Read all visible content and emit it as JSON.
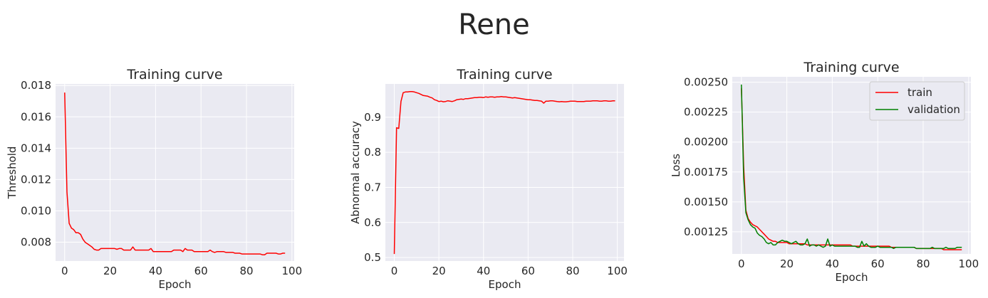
{
  "suptitle": "Rene",
  "chart_data": [
    {
      "type": "line",
      "title": "Training curve",
      "xlabel": "Epoch",
      "ylabel": "Threshold",
      "xlim": [
        -4,
        101
      ],
      "ylim": [
        0.0068,
        0.0181
      ],
      "xticks": [
        0,
        20,
        40,
        60,
        80,
        100
      ],
      "yticks": [
        0.008,
        0.01,
        0.012,
        0.014,
        0.016,
        0.018
      ],
      "ytick_labels": [
        "0.008",
        "0.010",
        "0.012",
        "0.014",
        "0.016",
        "0.018"
      ],
      "grid": true,
      "legend": null,
      "series": [
        {
          "color": "#ff0000",
          "x": [
            0,
            1,
            2,
            3,
            4,
            5,
            6,
            7,
            8,
            9,
            10,
            11,
            12,
            13,
            14,
            15,
            16,
            17,
            18,
            19,
            20,
            21,
            22,
            23,
            24,
            25,
            26,
            27,
            28,
            29,
            30,
            31,
            32,
            33,
            34,
            35,
            36,
            37,
            38,
            39,
            40,
            41,
            42,
            43,
            44,
            45,
            46,
            47,
            48,
            49,
            50,
            51,
            52,
            53,
            54,
            55,
            56,
            57,
            58,
            59,
            60,
            61,
            62,
            63,
            64,
            65,
            66,
            67,
            68,
            69,
            70,
            71,
            72,
            73,
            74,
            75,
            76,
            77,
            78,
            79,
            80,
            81,
            82,
            83,
            84,
            85,
            86,
            87,
            88,
            89,
            90,
            91,
            92,
            93,
            94,
            95,
            96,
            97
          ],
          "values": [
            0.01755,
            0.0112,
            0.0092,
            0.0089,
            0.0088,
            0.0086,
            0.0086,
            0.0085,
            0.0082,
            0.008,
            0.0079,
            0.0078,
            0.0077,
            0.00755,
            0.0075,
            0.0075,
            0.0076,
            0.0076,
            0.0076,
            0.0076,
            0.0076,
            0.0076,
            0.0076,
            0.00755,
            0.0076,
            0.0076,
            0.0075,
            0.0075,
            0.0075,
            0.0075,
            0.0077,
            0.0075,
            0.0075,
            0.0075,
            0.0075,
            0.0075,
            0.0075,
            0.0075,
            0.0076,
            0.0074,
            0.0074,
            0.0074,
            0.0074,
            0.0074,
            0.0074,
            0.0074,
            0.0074,
            0.0074,
            0.0075,
            0.0075,
            0.0075,
            0.0075,
            0.0074,
            0.0076,
            0.0075,
            0.0075,
            0.0075,
            0.0074,
            0.0074,
            0.0074,
            0.0074,
            0.0074,
            0.0074,
            0.0074,
            0.0075,
            0.0074,
            0.00735,
            0.0074,
            0.0074,
            0.0074,
            0.0074,
            0.00735,
            0.00735,
            0.00735,
            0.00735,
            0.0073,
            0.0073,
            0.0073,
            0.00725,
            0.00725,
            0.00725,
            0.00725,
            0.00725,
            0.00725,
            0.00725,
            0.00725,
            0.00725,
            0.0072,
            0.0072,
            0.0073,
            0.0073,
            0.0073,
            0.0073,
            0.0073,
            0.00725,
            0.00725,
            0.0073,
            0.0073
          ]
        }
      ]
    },
    {
      "type": "line",
      "title": "Training curve",
      "xlabel": "Epoch",
      "ylabel": "Abnormal accuracy",
      "xlim": [
        -4,
        103
      ],
      "ylim": [
        0.49,
        0.995
      ],
      "xticks": [
        0,
        20,
        40,
        60,
        80,
        100
      ],
      "yticks": [
        0.5,
        0.6,
        0.7,
        0.8,
        0.9
      ],
      "ytick_labels": [
        "0.5",
        "0.6",
        "0.7",
        "0.8",
        "0.9"
      ],
      "grid": true,
      "legend": null,
      "series": [
        {
          "color": "#ff0000",
          "x": [
            0,
            1,
            2,
            3,
            4,
            5,
            6,
            7,
            8,
            9,
            10,
            11,
            12,
            13,
            14,
            15,
            16,
            17,
            18,
            19,
            20,
            21,
            22,
            23,
            24,
            25,
            26,
            27,
            28,
            29,
            30,
            31,
            32,
            33,
            34,
            35,
            36,
            37,
            38,
            39,
            40,
            41,
            42,
            43,
            44,
            45,
            46,
            47,
            48,
            49,
            50,
            51,
            52,
            53,
            54,
            55,
            56,
            57,
            58,
            59,
            60,
            61,
            62,
            63,
            64,
            65,
            66,
            67,
            68,
            69,
            70,
            71,
            72,
            73,
            74,
            75,
            76,
            77,
            78,
            79,
            80,
            81,
            82,
            83,
            84,
            85,
            86,
            87,
            88,
            89,
            90,
            91,
            92,
            93,
            94,
            95,
            96,
            97,
            98,
            99
          ],
          "values": [
            0.51,
            0.87,
            0.868,
            0.945,
            0.97,
            0.972,
            0.972,
            0.973,
            0.973,
            0.972,
            0.97,
            0.968,
            0.965,
            0.962,
            0.961,
            0.96,
            0.957,
            0.955,
            0.95,
            0.948,
            0.945,
            0.946,
            0.944,
            0.945,
            0.947,
            0.946,
            0.945,
            0.947,
            0.95,
            0.951,
            0.952,
            0.951,
            0.953,
            0.953,
            0.954,
            0.955,
            0.956,
            0.956,
            0.957,
            0.957,
            0.956,
            0.958,
            0.957,
            0.958,
            0.958,
            0.957,
            0.958,
            0.958,
            0.959,
            0.958,
            0.958,
            0.957,
            0.956,
            0.955,
            0.956,
            0.955,
            0.954,
            0.953,
            0.952,
            0.951,
            0.95,
            0.95,
            0.949,
            0.948,
            0.948,
            0.947,
            0.946,
            0.94,
            0.946,
            0.946,
            0.947,
            0.947,
            0.946,
            0.945,
            0.944,
            0.945,
            0.944,
            0.944,
            0.945,
            0.946,
            0.946,
            0.946,
            0.945,
            0.945,
            0.945,
            0.945,
            0.946,
            0.946,
            0.946,
            0.947,
            0.947,
            0.947,
            0.946,
            0.946,
            0.947,
            0.947,
            0.946,
            0.946,
            0.947,
            0.947
          ]
        }
      ]
    },
    {
      "type": "line",
      "title": "Training curve",
      "xlabel": "Epoch",
      "ylabel": "Loss",
      "xlim": [
        -4,
        101
      ],
      "ylim": [
        0.001065,
        0.002545
      ],
      "xticks": [
        0,
        20,
        40,
        60,
        80,
        100
      ],
      "yticks": [
        0.00125,
        0.0015,
        0.00175,
        0.002,
        0.00225,
        0.0025
      ],
      "ytick_labels": [
        "0.00125",
        "0.00150",
        "0.00175",
        "0.00200",
        "0.00225",
        "0.00250"
      ],
      "grid": true,
      "legend": "top-right",
      "series": [
        {
          "name": "train",
          "color": "#ff0000",
          "x": [
            0,
            1,
            2,
            3,
            4,
            5,
            6,
            7,
            8,
            9,
            10,
            11,
            12,
            13,
            14,
            15,
            16,
            17,
            18,
            19,
            20,
            21,
            22,
            23,
            24,
            25,
            26,
            27,
            28,
            29,
            30,
            31,
            32,
            33,
            34,
            35,
            36,
            37,
            38,
            39,
            40,
            41,
            42,
            43,
            44,
            45,
            46,
            47,
            48,
            49,
            50,
            51,
            52,
            53,
            54,
            55,
            56,
            57,
            58,
            59,
            60,
            61,
            62,
            63,
            64,
            65,
            66,
            67,
            68,
            69,
            70,
            71,
            72,
            73,
            74,
            75,
            76,
            77,
            78,
            79,
            80,
            81,
            82,
            83,
            84,
            85,
            86,
            87,
            88,
            89,
            90,
            91,
            92,
            93,
            94,
            95,
            96,
            97
          ],
          "values": [
            0.00245,
            0.0018,
            0.00143,
            0.00136,
            0.00133,
            0.00131,
            0.0013,
            0.00129,
            0.00127,
            0.00125,
            0.00123,
            0.00121,
            0.00119,
            0.00118,
            0.00117,
            0.00117,
            0.00116,
            0.00116,
            0.00116,
            0.00116,
            0.00116,
            0.00115,
            0.00115,
            0.00115,
            0.00115,
            0.00115,
            0.00115,
            0.00115,
            0.00115,
            0.00114,
            0.00114,
            0.00114,
            0.00114,
            0.00114,
            0.00114,
            0.00114,
            0.00114,
            0.00114,
            0.00114,
            0.00114,
            0.00114,
            0.00114,
            0.00114,
            0.00114,
            0.00114,
            0.00114,
            0.00114,
            0.00114,
            0.00114,
            0.00113,
            0.00113,
            0.00113,
            0.00113,
            0.00113,
            0.00113,
            0.00113,
            0.00113,
            0.00113,
            0.00113,
            0.00113,
            0.00113,
            0.00113,
            0.00113,
            0.00113,
            0.00113,
            0.00113,
            0.00112,
            0.00112,
            0.00112,
            0.00112,
            0.00112,
            0.00112,
            0.00112,
            0.00112,
            0.00112,
            0.00112,
            0.00112,
            0.00111,
            0.00111,
            0.00111,
            0.00111,
            0.00111,
            0.00111,
            0.00111,
            0.00111,
            0.00111,
            0.00111,
            0.00111,
            0.00111,
            0.0011,
            0.0011,
            0.0011,
            0.0011,
            0.0011,
            0.0011,
            0.0011,
            0.0011,
            0.0011
          ]
        },
        {
          "name": "validation",
          "color": "#008000",
          "x": [
            0,
            1,
            2,
            3,
            4,
            5,
            6,
            7,
            8,
            9,
            10,
            11,
            12,
            13,
            14,
            15,
            16,
            17,
            18,
            19,
            20,
            21,
            22,
            23,
            24,
            25,
            26,
            27,
            28,
            29,
            30,
            31,
            32,
            33,
            34,
            35,
            36,
            37,
            38,
            39,
            40,
            41,
            42,
            43,
            44,
            45,
            46,
            47,
            48,
            49,
            50,
            51,
            52,
            53,
            54,
            55,
            56,
            57,
            58,
            59,
            60,
            61,
            62,
            63,
            64,
            65,
            66,
            67,
            68,
            69,
            70,
            71,
            72,
            73,
            74,
            75,
            76,
            77,
            78,
            79,
            80,
            81,
            82,
            83,
            84,
            85,
            86,
            87,
            88,
            89,
            90,
            91,
            92,
            93,
            94,
            95,
            96,
            97
          ],
          "values": [
            0.00248,
            0.0017,
            0.00141,
            0.00135,
            0.00131,
            0.00129,
            0.00128,
            0.00124,
            0.00122,
            0.00121,
            0.00119,
            0.00116,
            0.00115,
            0.00116,
            0.00114,
            0.00114,
            0.00116,
            0.00117,
            0.00118,
            0.00117,
            0.00117,
            0.00116,
            0.00115,
            0.00116,
            0.00117,
            0.00115,
            0.00114,
            0.00114,
            0.00115,
            0.00119,
            0.00113,
            0.00114,
            0.00114,
            0.00113,
            0.00114,
            0.00113,
            0.00112,
            0.00113,
            0.00119,
            0.00113,
            0.00114,
            0.00113,
            0.00113,
            0.00113,
            0.00113,
            0.00113,
            0.00113,
            0.00113,
            0.00113,
            0.00113,
            0.00113,
            0.00112,
            0.00112,
            0.00117,
            0.00113,
            0.00115,
            0.00113,
            0.00112,
            0.00112,
            0.00112,
            0.00113,
            0.00112,
            0.00112,
            0.00112,
            0.00112,
            0.00112,
            0.00112,
            0.00111,
            0.00112,
            0.00112,
            0.00112,
            0.00112,
            0.00112,
            0.00112,
            0.00112,
            0.00112,
            0.00112,
            0.00111,
            0.00111,
            0.00111,
            0.00111,
            0.00111,
            0.00111,
            0.00111,
            0.00112,
            0.00111,
            0.00111,
            0.00111,
            0.00111,
            0.00111,
            0.00112,
            0.00111,
            0.00111,
            0.00111,
            0.00111,
            0.00112,
            0.00112,
            0.00112
          ]
        }
      ]
    }
  ]
}
